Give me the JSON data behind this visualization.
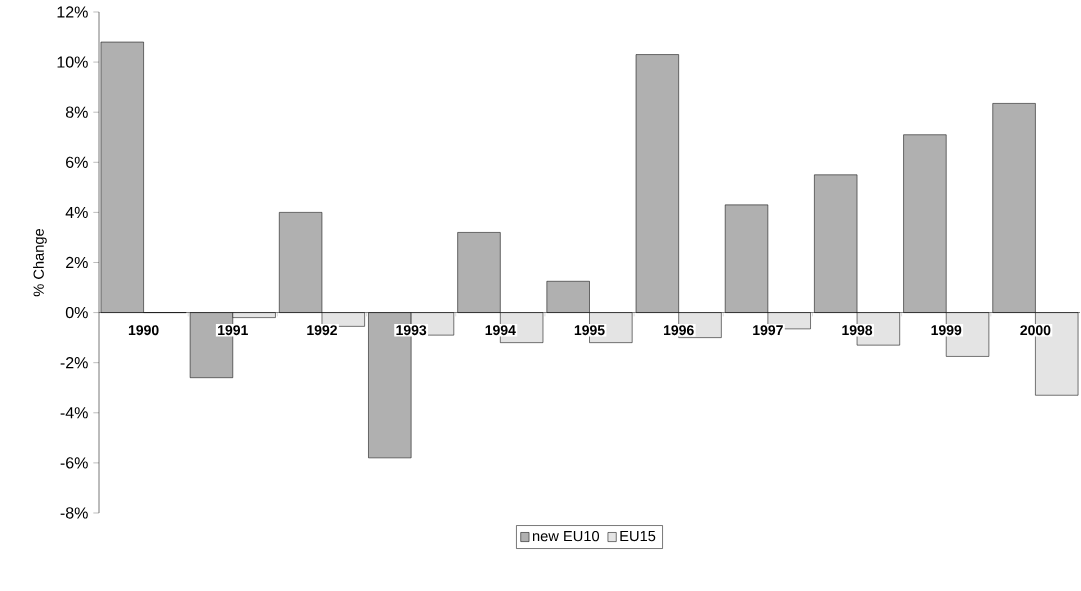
{
  "chart_data": {
    "type": "bar",
    "ylabel": "% Change",
    "categories": [
      "1990",
      "1991",
      "1992",
      "1993",
      "1994",
      "1995",
      "1996",
      "1997",
      "1998",
      "1999",
      "2000"
    ],
    "series": [
      {
        "name": "new EU10",
        "color": "#b0b0b0",
        "values": [
          10.8,
          -2.6,
          4.0,
          -5.8,
          3.2,
          1.25,
          10.3,
          4.3,
          5.5,
          7.1,
          8.35
        ]
      },
      {
        "name": "EU15",
        "color": "#e4e4e4",
        "values": [
          0,
          -0.2,
          -0.55,
          -0.9,
          -1.2,
          -1.2,
          -1.0,
          -0.65,
          -1.3,
          -1.75,
          -3.3
        ]
      }
    ],
    "ylim": [
      -8,
      12
    ],
    "yticks": [
      {
        "value": -8,
        "label": "-8%"
      },
      {
        "value": -6,
        "label": "-6%"
      },
      {
        "value": -4,
        "label": "-4%"
      },
      {
        "value": -2,
        "label": "-2%"
      },
      {
        "value": 0,
        "label": "0%"
      },
      {
        "value": 2,
        "label": "2%"
      },
      {
        "value": 4,
        "label": "4%"
      },
      {
        "value": 6,
        "label": "6%"
      },
      {
        "value": 8,
        "label": "8%"
      },
      {
        "value": 10,
        "label": "10%"
      },
      {
        "value": 12,
        "label": "12%"
      }
    ],
    "legend": "bottom"
  }
}
